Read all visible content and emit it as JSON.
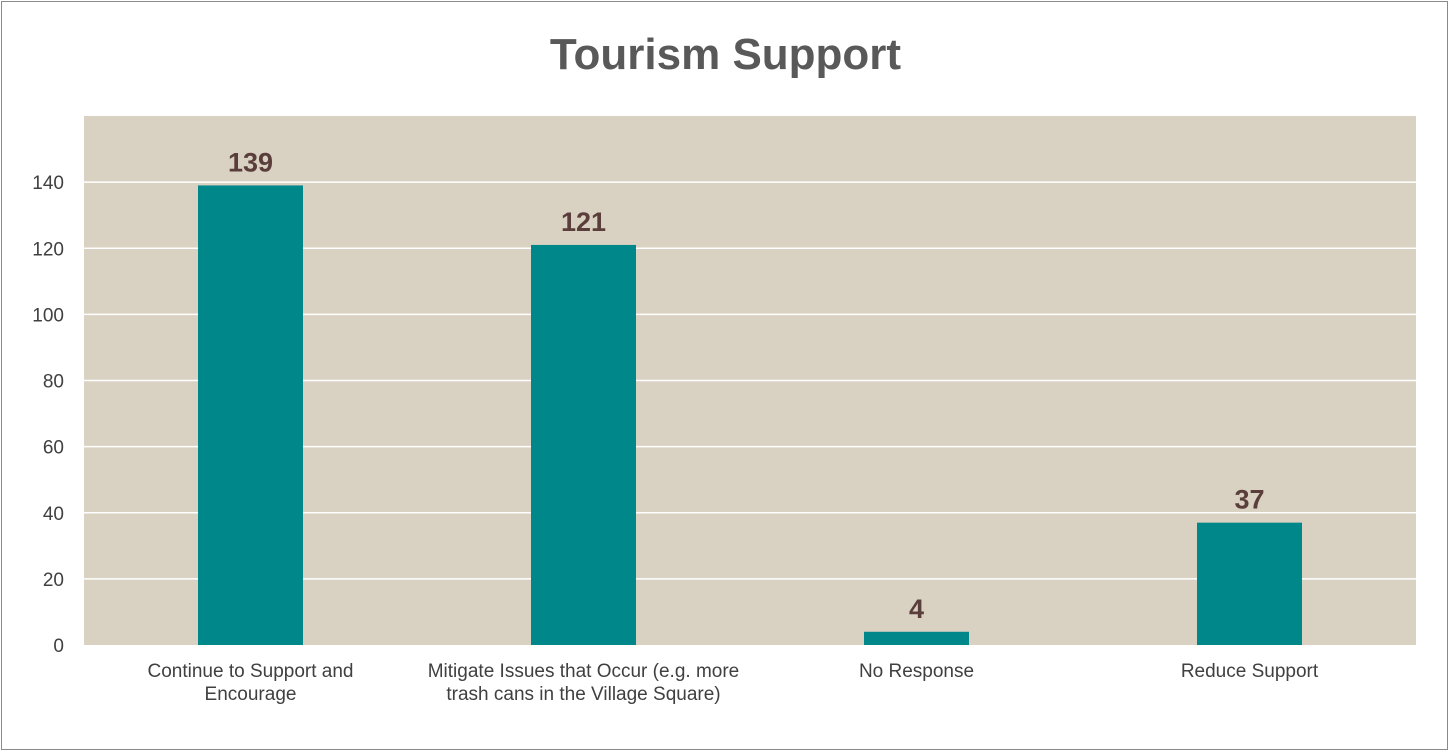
{
  "chart_data": {
    "type": "bar",
    "title": "Tourism Support",
    "xlabel": "",
    "ylabel": "",
    "categories": [
      "Continue to Support and Encourage",
      "Mitigate Issues that Occur (e.g. more trash cans in the Village Square)",
      "No Response",
      "Reduce Support"
    ],
    "values": [
      139,
      121,
      4,
      37
    ],
    "ylim": [
      0,
      160
    ],
    "yticks": [
      0,
      20,
      40,
      60,
      80,
      100,
      120,
      140
    ],
    "grid": true,
    "legend": "none",
    "colors": {
      "bar": "#00878a",
      "plot_background": "#d9d1c2",
      "gridline": "#ffffff",
      "data_label": "#5a3e3b"
    }
  }
}
